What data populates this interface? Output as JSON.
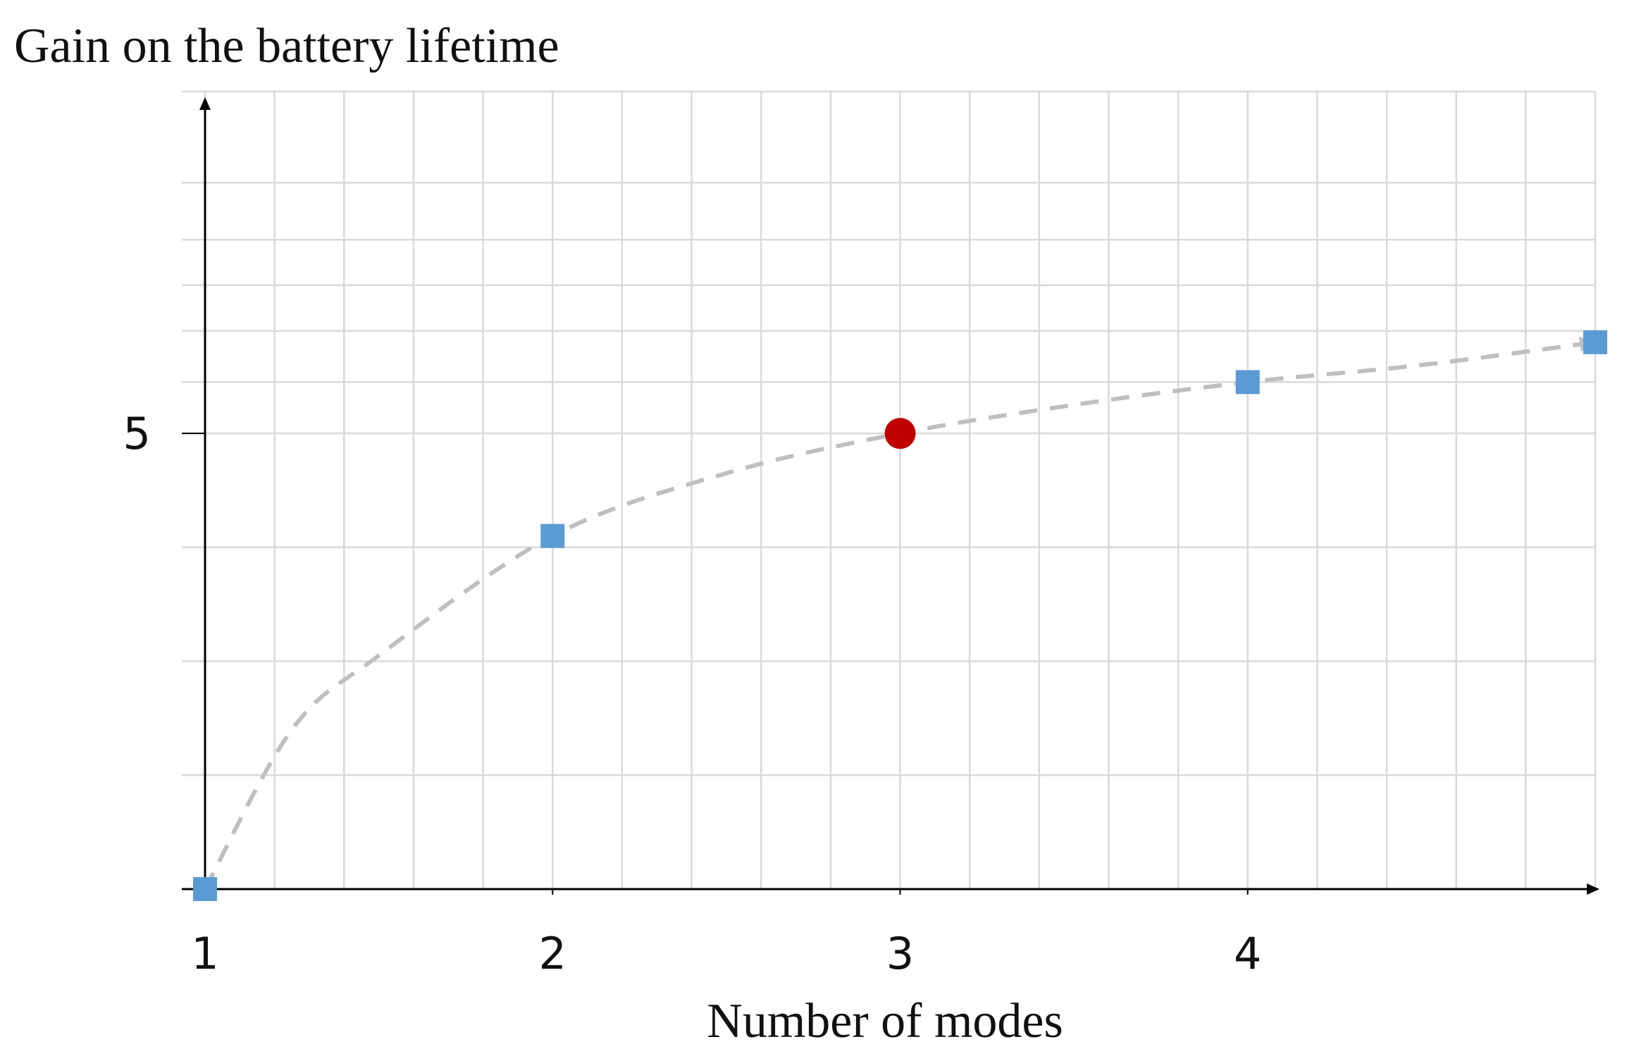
{
  "chart_data": {
    "type": "scatter",
    "title": "",
    "ylabel": "Gain on the battery lifetime",
    "xlabel": "Number of modes",
    "x_ticks": [
      "1",
      "2",
      "3",
      "4"
    ],
    "y_ticks": [
      "5"
    ],
    "xlim": [
      1,
      5
    ],
    "ylim": [
      1,
      8
    ],
    "grid": true,
    "legend": "none",
    "series": [
      {
        "marker": "square",
        "color": "#5B9BD5",
        "points": [
          {
            "x": 1,
            "y": 1.0
          },
          {
            "x": 2,
            "y": 4.1
          },
          {
            "x": 4,
            "y": 5.45
          },
          {
            "x": 5,
            "y": 5.8
          }
        ]
      },
      {
        "marker": "circle",
        "color": "#C00000",
        "points": [
          {
            "x": 3,
            "y": 5.0
          }
        ]
      }
    ],
    "trend": {
      "style": "dashed",
      "color": "#BFBFBF",
      "points": [
        {
          "x": 1,
          "y": 1.0
        },
        {
          "x": 1.25,
          "y": 2.4
        },
        {
          "x": 1.5,
          "y": 3.05
        },
        {
          "x": 2,
          "y": 4.1
        },
        {
          "x": 2.5,
          "y": 4.65
        },
        {
          "x": 3,
          "y": 5.0
        },
        {
          "x": 3.5,
          "y": 5.25
        },
        {
          "x": 4,
          "y": 5.45
        },
        {
          "x": 4.5,
          "y": 5.6
        },
        {
          "x": 5,
          "y": 5.8
        }
      ]
    },
    "axis_color": "#000000",
    "grid_color": "#D9D9D9"
  }
}
